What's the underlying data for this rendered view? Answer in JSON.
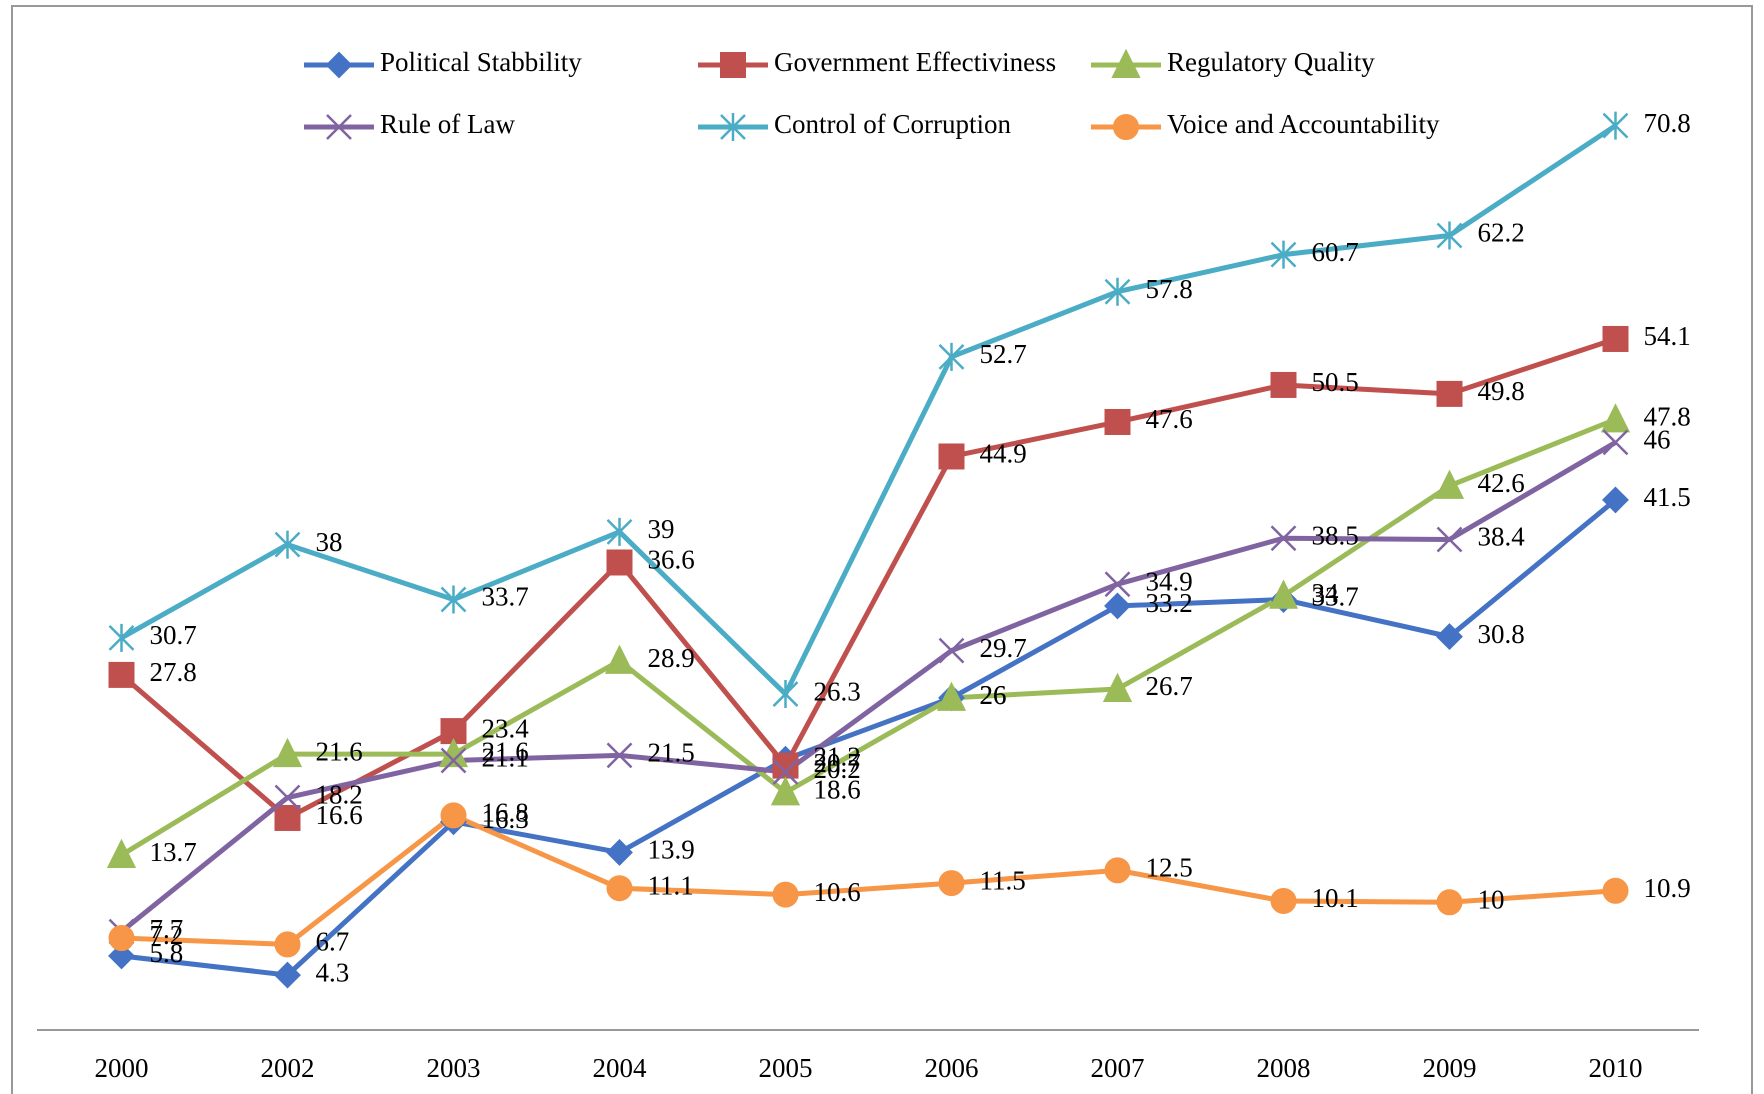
{
  "chart_data": {
    "type": "line",
    "categories": [
      "2000",
      "2002",
      "2003",
      "2004",
      "2005",
      "2006",
      "2007",
      "2008",
      "2009",
      "2010"
    ],
    "series": [
      {
        "name": "Political Stabbility",
        "color": "#4472c4",
        "marker": "diamond",
        "values": [
          5.8,
          4.3,
          16.3,
          13.9,
          21.2,
          26,
          33.2,
          33.7,
          30.8,
          41.5
        ]
      },
      {
        "name": "Government Effectiviness",
        "color": "#c0504d",
        "marker": "square",
        "values": [
          27.8,
          16.6,
          23.4,
          36.6,
          20.7,
          44.9,
          47.6,
          50.5,
          49.8,
          54.1
        ]
      },
      {
        "name": "Regulatory Quality",
        "color": "#9bbb59",
        "marker": "triangle",
        "values": [
          13.7,
          21.6,
          21.6,
          28.9,
          18.6,
          26,
          26.7,
          34,
          42.6,
          47.8
        ]
      },
      {
        "name": "Rule  of Law",
        "color": "#8064a2",
        "marker": "x",
        "values": [
          7.7,
          18.2,
          21.1,
          21.5,
          20.2,
          29.7,
          34.9,
          38.5,
          38.4,
          46
        ]
      },
      {
        "name": "Control of Corruption",
        "color": "#4bacc6",
        "marker": "star",
        "values": [
          30.7,
          38,
          33.7,
          39,
          26.3,
          52.7,
          57.8,
          60.7,
          62.2,
          70.8
        ]
      },
      {
        "name": "Voice and Accountability",
        "color": "#f79646",
        "marker": "circle",
        "values": [
          7.2,
          6.7,
          16.8,
          11.1,
          10.6,
          11.5,
          12.5,
          10.1,
          10,
          10.9
        ]
      }
    ],
    "ylim": [
      0,
      75
    ],
    "grid": false,
    "legend": "top"
  }
}
